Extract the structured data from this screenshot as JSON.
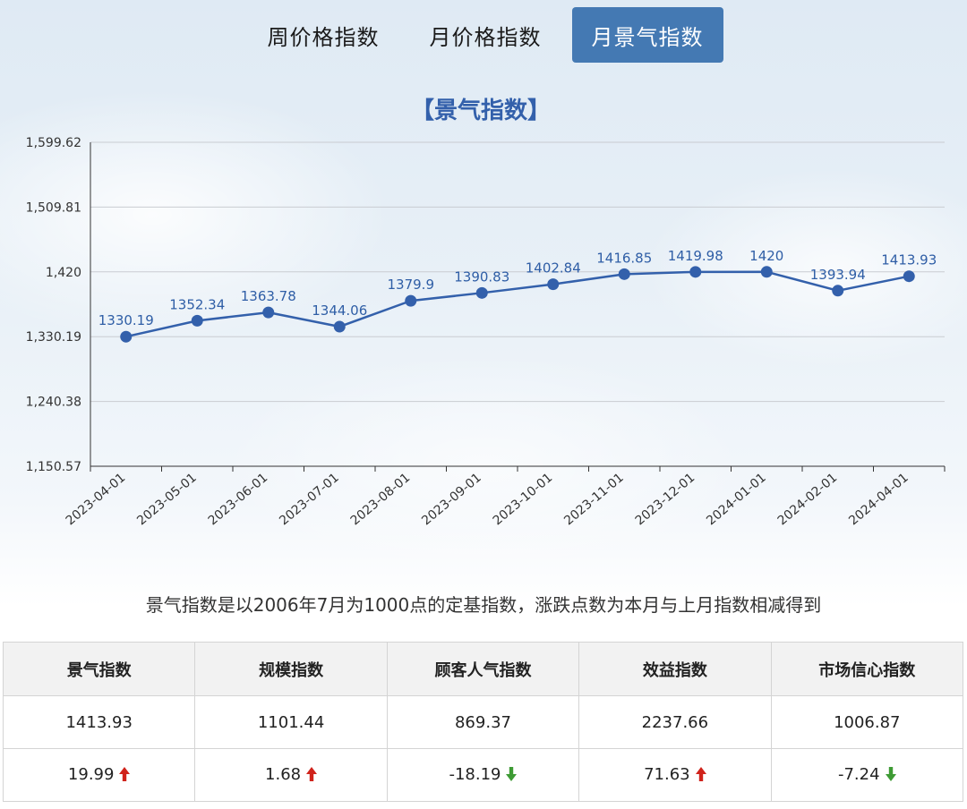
{
  "tabs": [
    {
      "label": "周价格指数",
      "active": false
    },
    {
      "label": "月价格指数",
      "active": false
    },
    {
      "label": "月景气指数",
      "active": true
    }
  ],
  "colors": {
    "accent": "#4479b3",
    "series_line": "#3360ab",
    "label": "#2f5ea6",
    "up": "#d0231b",
    "down": "#3e9b34"
  },
  "chart_data": {
    "type": "line",
    "title": "【景气指数】",
    "x": [
      "2023-04-01",
      "2023-05-01",
      "2023-06-01",
      "2023-07-01",
      "2023-08-01",
      "2023-09-01",
      "2023-10-01",
      "2023-11-01",
      "2023-12-01",
      "2024-01-01",
      "2024-02-01",
      "2024-04-01"
    ],
    "series": [
      {
        "values": [
          1330.19,
          1352.34,
          1363.78,
          1344.06,
          1379.9,
          1390.83,
          1402.84,
          1416.85,
          1419.98,
          1420,
          1393.94,
          1413.93
        ],
        "labels": [
          "1330.19",
          "1352.34",
          "1363.78",
          "1344.06",
          "1379.9",
          "1390.83",
          "1402.84",
          "1416.85",
          "1419.98",
          "1420",
          "1393.94",
          "1413.93"
        ]
      }
    ],
    "yticks": [
      1599.62,
      1509.81,
      1420,
      1330.19,
      1240.38,
      1150.57
    ],
    "ytick_labels": [
      "1,599.62",
      "1,509.81",
      "1,420",
      "1,330.19",
      "1,240.38",
      "1,150.57"
    ],
    "ylim": [
      1150.57,
      1599.62
    ],
    "grid": true,
    "legend": "none"
  },
  "note": "景气指数是以2006年7月为1000点的定基指数，涨跌点数为本月与上月指数相减得到",
  "table": {
    "headers": [
      "景气指数",
      "规模指数",
      "顾客人气指数",
      "效益指数",
      "市场信心指数"
    ],
    "values": [
      "1413.93",
      "1101.44",
      "869.37",
      "2237.66",
      "1006.87"
    ],
    "changes": [
      {
        "value": "19.99",
        "direction": "up",
        "icon": "arrow-up-icon"
      },
      {
        "value": "1.68",
        "direction": "up",
        "icon": "arrow-up-icon"
      },
      {
        "value": "-18.19",
        "direction": "down",
        "icon": "arrow-down-icon"
      },
      {
        "value": "71.63",
        "direction": "up",
        "icon": "arrow-up-icon"
      },
      {
        "value": "-7.24",
        "direction": "down",
        "icon": "arrow-down-icon"
      }
    ]
  }
}
